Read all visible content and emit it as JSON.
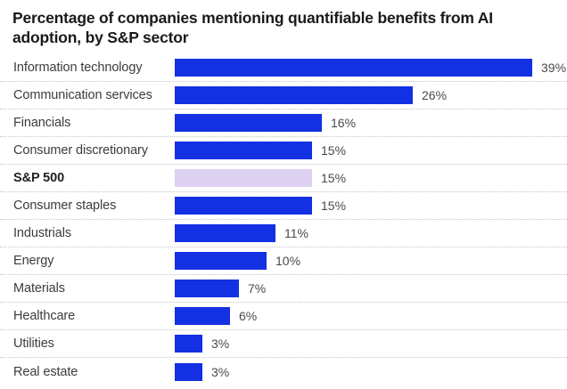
{
  "title": "Percentage of companies mentioning quantifiable benefits from AI adoption, by S&P sector",
  "colors": {
    "background": "#ffffff",
    "bar_blue": "#1430e3",
    "highlight_lavender": "#ddd2f1",
    "separator": "#c4c4c4",
    "title_text": "#1a1a1a",
    "label_text": "#3c3c3c",
    "value_text": "#4a4a4a"
  },
  "chart_data": {
    "type": "bar",
    "orientation": "horizontal",
    "title": "Percentage of companies mentioning quantifiable benefits from AI adoption, by S&P sector",
    "xlabel": "",
    "ylabel": "",
    "xlim": [
      0,
      42
    ],
    "grid": false,
    "legend": "none",
    "value_suffix": "%",
    "categories": [
      "Information technology",
      "Communication services",
      "Financials",
      "Consumer discretionary",
      "S&P 500",
      "Consumer staples",
      "Industrials",
      "Energy",
      "Materials",
      "Healthcare",
      "Utilities",
      "Real estate"
    ],
    "values": [
      39,
      26,
      16,
      15,
      15,
      15,
      11,
      10,
      7,
      6,
      3,
      3
    ],
    "value_labels": [
      "39%",
      "26%",
      "16%",
      "15%",
      "15%",
      "15%",
      "11%",
      "10%",
      "7%",
      "6%",
      "3%",
      "3%"
    ],
    "highlight_index": 4,
    "highlight_category": "S&P 500",
    "highlight_note": "S&P 500 overall benchmark shown as light lavender bar with bold label; all sector bars are vivid blue"
  }
}
